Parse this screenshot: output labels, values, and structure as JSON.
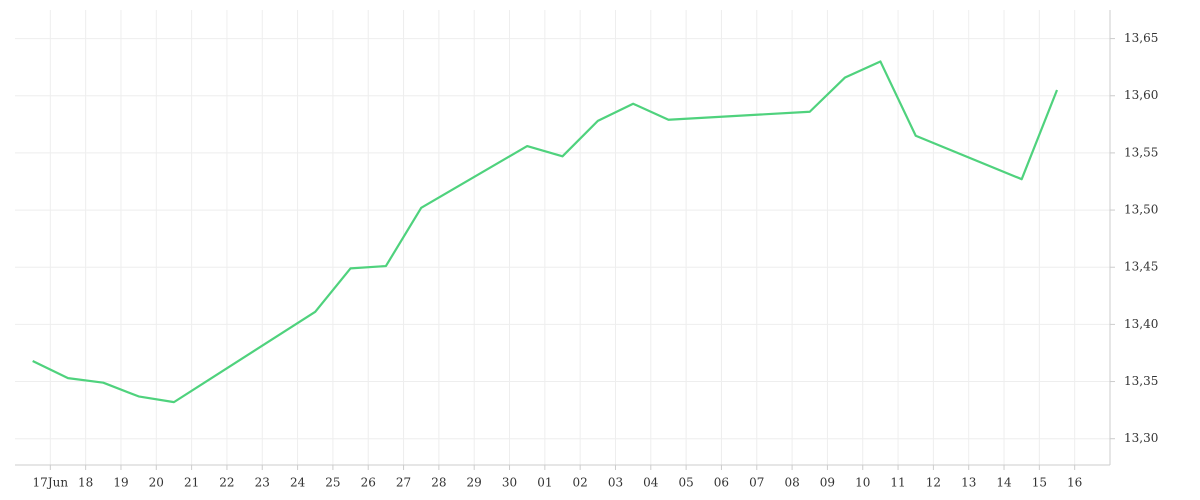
{
  "chart_data": {
    "type": "line",
    "x": [
      -0.5,
      0.5,
      1.5,
      2.5,
      3.5,
      7.5,
      8.5,
      9.5,
      10.5,
      13.5,
      14.5,
      15.5,
      16.5,
      17.5,
      21.5,
      22.5,
      23.5,
      24.5,
      27.5,
      28.5
    ],
    "series": [
      {
        "color": "#4fd27d",
        "values": [
          13.368,
          13.353,
          13.349,
          13.337,
          13.332,
          13.411,
          13.449,
          13.451,
          13.502,
          13.556,
          13.547,
          13.578,
          13.593,
          13.579,
          13.586,
          13.616,
          13.63,
          13.565,
          13.527,
          13.605
        ]
      }
    ],
    "xlim": [
      -1,
      30
    ],
    "xticks": [
      {
        "value": 0,
        "label": "17Jun"
      },
      {
        "value": 1,
        "label": "18"
      },
      {
        "value": 2,
        "label": "19"
      },
      {
        "value": 3,
        "label": "20"
      },
      {
        "value": 4,
        "label": "21"
      },
      {
        "value": 5,
        "label": "22"
      },
      {
        "value": 6,
        "label": "23"
      },
      {
        "value": 7,
        "label": "24"
      },
      {
        "value": 8,
        "label": "25"
      },
      {
        "value": 9,
        "label": "26"
      },
      {
        "value": 10,
        "label": "27"
      },
      {
        "value": 11,
        "label": "28"
      },
      {
        "value": 12,
        "label": "29"
      },
      {
        "value": 13,
        "label": "30"
      },
      {
        "value": 14,
        "label": "01"
      },
      {
        "value": 15,
        "label": "02"
      },
      {
        "value": 16,
        "label": "03"
      },
      {
        "value": 17,
        "label": "04"
      },
      {
        "value": 18,
        "label": "05"
      },
      {
        "value": 19,
        "label": "06"
      },
      {
        "value": 20,
        "label": "07"
      },
      {
        "value": 21,
        "label": "08"
      },
      {
        "value": 22,
        "label": "09"
      },
      {
        "value": 23,
        "label": "10"
      },
      {
        "value": 24,
        "label": "11"
      },
      {
        "value": 25,
        "label": "12"
      },
      {
        "value": 26,
        "label": "13"
      },
      {
        "value": 27,
        "label": "14"
      },
      {
        "value": 28,
        "label": "15"
      },
      {
        "value": 29,
        "label": "16"
      }
    ],
    "ylim": [
      13.277,
      13.675
    ],
    "yticks": [
      {
        "value": 13.3,
        "label": "13,30"
      },
      {
        "value": 13.35,
        "label": "13,35"
      },
      {
        "value": 13.4,
        "label": "13,40"
      },
      {
        "value": 13.45,
        "label": "13,45"
      },
      {
        "value": 13.5,
        "label": "13,50"
      },
      {
        "value": 13.55,
        "label": "13,55"
      },
      {
        "value": 13.6,
        "label": "13,60"
      },
      {
        "value": 13.65,
        "label": "13,65"
      }
    ],
    "grid": true
  }
}
